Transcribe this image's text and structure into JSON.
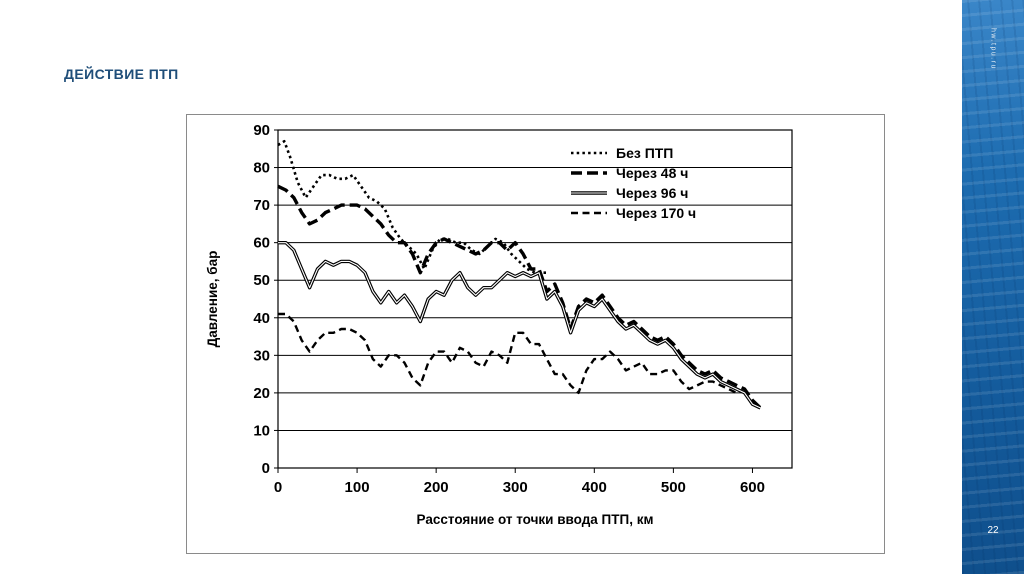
{
  "slide": {
    "title": "ДЕЙСТВИЕ ПТП",
    "page_number": "22",
    "sidebar_watermark": "hw.tpu.ru",
    "accent_color": "#1f4e79",
    "sidebar_color": "#1d6cb0"
  },
  "chart_data": {
    "type": "line",
    "title": "",
    "xlabel": "Расстояние от точки ввода ПТП, км",
    "ylabel": "Давление, бар",
    "xlim": [
      0,
      650
    ],
    "ylim": [
      0,
      90
    ],
    "xticks": [
      0,
      100,
      200,
      300,
      400,
      500,
      600
    ],
    "yticks": [
      0,
      10,
      20,
      30,
      40,
      50,
      60,
      70,
      80,
      90
    ],
    "grid": "horizontal",
    "legend_position": "top-right-inside",
    "line_color": "#000000",
    "series": [
      {
        "name": "Без ПТП",
        "style": "dotted",
        "points": [
          [
            0,
            86
          ],
          [
            8,
            87
          ],
          [
            15,
            83
          ],
          [
            25,
            76
          ],
          [
            35,
            72
          ],
          [
            45,
            75
          ],
          [
            55,
            78
          ],
          [
            65,
            78
          ],
          [
            75,
            77
          ],
          [
            85,
            77
          ],
          [
            95,
            78
          ],
          [
            105,
            75
          ],
          [
            115,
            72
          ],
          [
            125,
            71
          ],
          [
            135,
            69
          ],
          [
            145,
            64
          ],
          [
            155,
            61
          ],
          [
            165,
            59
          ],
          [
            175,
            57
          ],
          [
            185,
            53
          ],
          [
            195,
            58
          ],
          [
            205,
            61
          ],
          [
            215,
            61
          ],
          [
            225,
            60
          ],
          [
            235,
            60
          ],
          [
            245,
            58
          ],
          [
            255,
            57
          ],
          [
            265,
            59
          ],
          [
            275,
            61
          ],
          [
            285,
            60
          ],
          [
            295,
            57
          ],
          [
            305,
            55
          ],
          [
            315,
            53
          ],
          [
            325,
            52
          ],
          [
            340,
            52
          ]
        ]
      },
      {
        "name": "Через 48 ч",
        "style": "dashed-bold",
        "points": [
          [
            0,
            75
          ],
          [
            10,
            74
          ],
          [
            20,
            72
          ],
          [
            30,
            68
          ],
          [
            40,
            65
          ],
          [
            50,
            66
          ],
          [
            60,
            68
          ],
          [
            70,
            69
          ],
          [
            80,
            70
          ],
          [
            90,
            70
          ],
          [
            100,
            70
          ],
          [
            110,
            69
          ],
          [
            120,
            67
          ],
          [
            130,
            65
          ],
          [
            140,
            62
          ],
          [
            150,
            60
          ],
          [
            160,
            60
          ],
          [
            170,
            57
          ],
          [
            180,
            52
          ],
          [
            190,
            57
          ],
          [
            200,
            60
          ],
          [
            210,
            61
          ],
          [
            220,
            60
          ],
          [
            230,
            59
          ],
          [
            240,
            58
          ],
          [
            250,
            57
          ],
          [
            260,
            58
          ],
          [
            270,
            60
          ],
          [
            280,
            60
          ],
          [
            290,
            58
          ],
          [
            300,
            60
          ],
          [
            310,
            57
          ],
          [
            320,
            53
          ],
          [
            330,
            53
          ],
          [
            340,
            47
          ],
          [
            350,
            49
          ],
          [
            360,
            44
          ],
          [
            370,
            37
          ],
          [
            380,
            43
          ],
          [
            390,
            45
          ],
          [
            400,
            44
          ],
          [
            410,
            46
          ],
          [
            420,
            43
          ],
          [
            430,
            40
          ],
          [
            440,
            38
          ],
          [
            450,
            39
          ],
          [
            460,
            37
          ],
          [
            470,
            35
          ],
          [
            480,
            34
          ],
          [
            490,
            35
          ],
          [
            500,
            33
          ],
          [
            510,
            30
          ],
          [
            520,
            28
          ],
          [
            530,
            26
          ],
          [
            540,
            25
          ],
          [
            550,
            26
          ],
          [
            560,
            24
          ],
          [
            570,
            23
          ],
          [
            580,
            22
          ],
          [
            590,
            21
          ],
          [
            600,
            18
          ],
          [
            610,
            16
          ]
        ]
      },
      {
        "name": "Через 96 ч",
        "style": "solid-double",
        "points": [
          [
            0,
            60
          ],
          [
            10,
            60
          ],
          [
            20,
            58
          ],
          [
            30,
            53
          ],
          [
            40,
            48
          ],
          [
            50,
            53
          ],
          [
            60,
            55
          ],
          [
            70,
            54
          ],
          [
            80,
            55
          ],
          [
            90,
            55
          ],
          [
            100,
            54
          ],
          [
            110,
            52
          ],
          [
            120,
            47
          ],
          [
            130,
            44
          ],
          [
            140,
            47
          ],
          [
            150,
            44
          ],
          [
            160,
            46
          ],
          [
            170,
            43
          ],
          [
            180,
            39
          ],
          [
            190,
            45
          ],
          [
            200,
            47
          ],
          [
            210,
            46
          ],
          [
            220,
            50
          ],
          [
            230,
            52
          ],
          [
            240,
            48
          ],
          [
            250,
            46
          ],
          [
            260,
            48
          ],
          [
            270,
            48
          ],
          [
            280,
            50
          ],
          [
            290,
            52
          ],
          [
            300,
            51
          ],
          [
            310,
            52
          ],
          [
            320,
            51
          ],
          [
            330,
            52
          ],
          [
            340,
            45
          ],
          [
            350,
            47
          ],
          [
            360,
            43
          ],
          [
            370,
            36
          ],
          [
            380,
            42
          ],
          [
            390,
            44
          ],
          [
            400,
            43
          ],
          [
            410,
            45
          ],
          [
            420,
            42
          ],
          [
            430,
            39
          ],
          [
            440,
            37
          ],
          [
            450,
            38
          ],
          [
            460,
            36
          ],
          [
            470,
            34
          ],
          [
            480,
            33
          ],
          [
            490,
            34
          ],
          [
            500,
            32
          ],
          [
            510,
            29
          ],
          [
            520,
            27
          ],
          [
            530,
            25
          ],
          [
            540,
            24
          ],
          [
            550,
            25
          ],
          [
            560,
            23
          ],
          [
            570,
            22
          ],
          [
            580,
            21
          ],
          [
            590,
            20
          ],
          [
            600,
            17
          ],
          [
            610,
            16
          ]
        ]
      },
      {
        "name": "Через 170 ч",
        "style": "dashed",
        "points": [
          [
            0,
            41
          ],
          [
            10,
            41
          ],
          [
            20,
            39
          ],
          [
            30,
            34
          ],
          [
            40,
            31
          ],
          [
            50,
            34
          ],
          [
            60,
            36
          ],
          [
            70,
            36
          ],
          [
            80,
            37
          ],
          [
            90,
            37
          ],
          [
            100,
            36
          ],
          [
            110,
            34
          ],
          [
            120,
            29
          ],
          [
            130,
            27
          ],
          [
            140,
            30
          ],
          [
            150,
            30
          ],
          [
            160,
            28
          ],
          [
            170,
            24
          ],
          [
            180,
            22
          ],
          [
            190,
            28
          ],
          [
            200,
            31
          ],
          [
            210,
            31
          ],
          [
            220,
            28
          ],
          [
            230,
            32
          ],
          [
            240,
            31
          ],
          [
            250,
            28
          ],
          [
            260,
            27
          ],
          [
            270,
            31
          ],
          [
            280,
            30
          ],
          [
            290,
            28
          ],
          [
            300,
            36
          ],
          [
            310,
            36
          ],
          [
            320,
            33
          ],
          [
            330,
            33
          ],
          [
            340,
            29
          ],
          [
            350,
            25
          ],
          [
            360,
            25
          ],
          [
            370,
            22
          ],
          [
            380,
            20
          ],
          [
            390,
            26
          ],
          [
            400,
            29
          ],
          [
            410,
            29
          ],
          [
            420,
            31
          ],
          [
            430,
            29
          ],
          [
            440,
            26
          ],
          [
            450,
            27
          ],
          [
            460,
            28
          ],
          [
            470,
            25
          ],
          [
            480,
            25
          ],
          [
            490,
            26
          ],
          [
            500,
            26
          ],
          [
            510,
            23
          ],
          [
            520,
            21
          ],
          [
            530,
            22
          ],
          [
            540,
            23
          ],
          [
            550,
            23
          ],
          [
            560,
            22
          ],
          [
            570,
            21
          ],
          [
            580,
            20
          ]
        ]
      }
    ]
  }
}
